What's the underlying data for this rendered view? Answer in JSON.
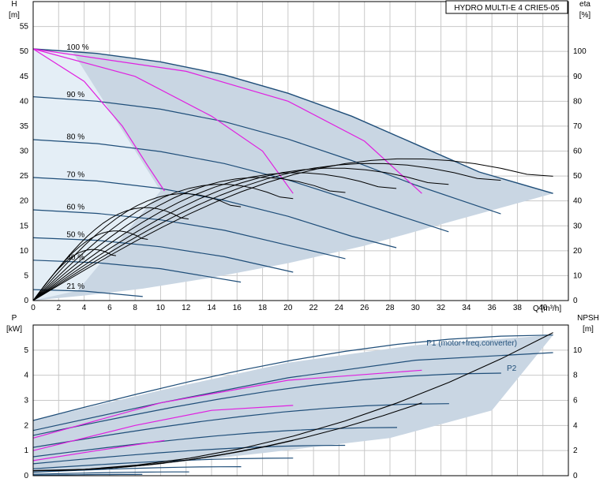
{
  "title": "HYDRO MULTI-E 4 CRIE5-05",
  "colors": {
    "envelope": "#c9d6e3",
    "envelope_light": "#e4eef6",
    "curve": "#1f4e79",
    "efficiency": "#000000",
    "limit": "#e020e0",
    "grid": "#c8c8c8"
  },
  "chart_data": [
    {
      "type": "line",
      "name_panel": "head",
      "ylabel": "H",
      "yunit": "[m]",
      "y2label": "eta",
      "y2unit": "[%]",
      "xlabel": "Q [m³/h]",
      "xlim": [
        0,
        42
      ],
      "ylim": [
        0,
        60
      ],
      "y2lim": [
        0,
        120
      ],
      "xticks": [
        0,
        2,
        4,
        6,
        8,
        10,
        12,
        14,
        16,
        18,
        20,
        22,
        24,
        26,
        28,
        30,
        32,
        34,
        36,
        38,
        40
      ],
      "yticks": [
        0,
        5,
        10,
        15,
        20,
        25,
        30,
        35,
        40,
        45,
        50,
        55
      ],
      "y2ticks": [
        0,
        10,
        20,
        30,
        40,
        50,
        60,
        70,
        80,
        90,
        100
      ],
      "grid": true,
      "speed_labels": [
        {
          "text": "100 %",
          "x": 2.5,
          "y": 50.2
        },
        {
          "text": "90 %",
          "x": 2.5,
          "y": 40.7
        },
        {
          "text": "80 %",
          "x": 2.5,
          "y": 32.2
        },
        {
          "text": "70 %",
          "x": 2.5,
          "y": 24.6
        },
        {
          "text": "60 %",
          "x": 2.5,
          "y": 18.1
        },
        {
          "text": "50 %",
          "x": 2.5,
          "y": 12.6
        },
        {
          "text": "40 %",
          "x": 2.5,
          "y": 8.0
        },
        {
          "text": "21 %",
          "x": 2.5,
          "y": 2.2
        }
      ],
      "series": [
        {
          "name": "100 %",
          "x": [
            0,
            5,
            10,
            15,
            20,
            25,
            30,
            35,
            40.8
          ],
          "values": [
            50.5,
            49.6,
            47.9,
            45.3,
            41.6,
            37.0,
            31.4,
            25.8,
            21.5
          ]
        },
        {
          "name": "90 %",
          "x": [
            0,
            5,
            10,
            15,
            20,
            25,
            30,
            36.7
          ],
          "values": [
            40.9,
            40.0,
            38.4,
            35.9,
            32.4,
            28.1,
            23.2,
            17.4
          ]
        },
        {
          "name": "80 %",
          "x": [
            0,
            5,
            10,
            15,
            20,
            25,
            32.6
          ],
          "values": [
            32.3,
            31.5,
            29.9,
            27.5,
            24.2,
            20.1,
            13.8
          ]
        },
        {
          "name": "70 %",
          "x": [
            0,
            5,
            10,
            15,
            20,
            25,
            28.5
          ],
          "values": [
            24.7,
            24.0,
            22.5,
            20.1,
            16.9,
            12.9,
            10.6
          ]
        },
        {
          "name": "60 %",
          "x": [
            0,
            5,
            10,
            15,
            20,
            24.5
          ],
          "values": [
            18.2,
            17.5,
            16.2,
            14.1,
            11.1,
            8.4
          ]
        },
        {
          "name": "50 %",
          "x": [
            0,
            5,
            10,
            15,
            20.4
          ],
          "values": [
            12.6,
            12.1,
            10.8,
            8.8,
            5.7
          ]
        },
        {
          "name": "40 %",
          "x": [
            0,
            5,
            10,
            16.3
          ],
          "values": [
            8.1,
            7.6,
            6.4,
            3.7
          ]
        },
        {
          "name": "21 %",
          "x": [
            0,
            4,
            8.6
          ],
          "values": [
            2.2,
            1.9,
            0.8
          ]
        }
      ]
    },
    {
      "type": "line",
      "name_panel": "power",
      "ylabel": "P",
      "yunit": "[kW]",
      "y2label": "NPSH",
      "y2unit": "[m]",
      "xlim": [
        0,
        42
      ],
      "ylim": [
        0,
        6
      ],
      "y2lim": [
        0,
        12
      ],
      "yticks": [
        0,
        1,
        2,
        3,
        4,
        5
      ],
      "y2ticks": [
        0,
        2,
        4,
        6,
        8,
        10
      ],
      "grid": true,
      "labels": [
        "P1 (motor+freq.converter)",
        "P2"
      ],
      "series": [
        {
          "name": "P1 (motor+freq.converter)",
          "x": [
            0,
            10,
            20,
            30,
            40.8
          ],
          "values": [
            2.2,
            3.4,
            4.5,
            5.2,
            5.6
          ]
        },
        {
          "name": "P2",
          "x": [
            0,
            10,
            20,
            30,
            40.8
          ],
          "values": [
            1.8,
            2.9,
            3.9,
            4.6,
            4.9
          ]
        },
        {
          "name": "NPSH",
          "x": [
            0,
            10,
            20,
            30,
            40.8
          ],
          "values": [
            0.2,
            0.8,
            2.2,
            3.8,
            5.7
          ]
        }
      ]
    }
  ]
}
